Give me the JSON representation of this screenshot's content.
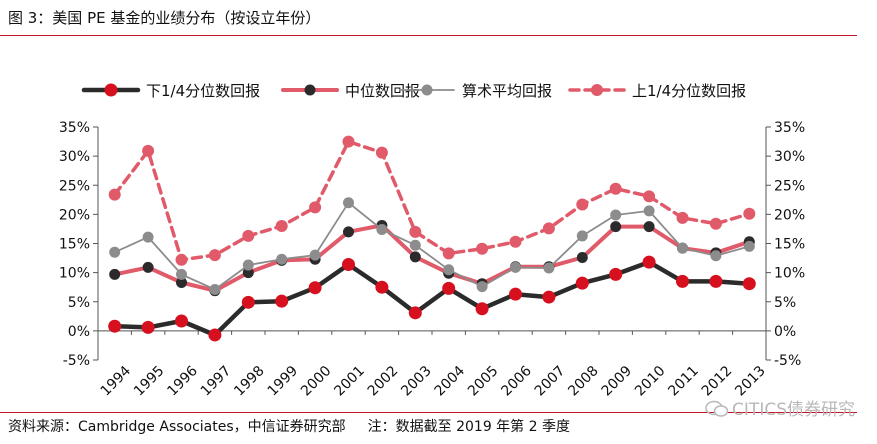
{
  "figure_title": "图 3：美国 PE 基金的业绩分布（按设立年份）",
  "source_text": "资料来源：Cambridge Associates，中信证券研究部",
  "note_text": "注：数据截至 2019 年第 2 季度",
  "watermark": "CITICS债券研究",
  "colors": {
    "accent": "#c0152a",
    "dark": "#2b2b2b",
    "pink": "#e05a6a",
    "gray": "#8c8c8c"
  },
  "chart_data": {
    "type": "line",
    "x": [
      "1994",
      "1995",
      "1996",
      "1997",
      "1998",
      "1999",
      "2000",
      "2001",
      "2002",
      "2003",
      "2004",
      "2005",
      "2006",
      "2007",
      "2008",
      "2009",
      "2010",
      "2011",
      "2012",
      "2013"
    ],
    "y_tick_labels": [
      "35%",
      "30%",
      "25%",
      "20%",
      "15%",
      "10%",
      "5%",
      "0%",
      "-5%"
    ],
    "ylim": [
      -5,
      35
    ],
    "y_unit": "%",
    "y2_axis": true,
    "grid": false,
    "legend_position": "top",
    "series": [
      {
        "name": "下1/4分位数回报",
        "style": "solid-thick",
        "color": "#2b2b2b",
        "marker_color": "#d6101f",
        "values": [
          0.8,
          0.6,
          1.7,
          -0.7,
          4.9,
          5.1,
          7.4,
          11.4,
          7.5,
          3.1,
          7.3,
          3.8,
          6.3,
          5.8,
          8.2,
          9.7,
          11.8,
          8.5,
          8.5,
          8.1
        ]
      },
      {
        "name": "中位数回报",
        "style": "solid",
        "color": "#e05a6a",
        "marker_color": "#2b2b2b",
        "values": [
          9.7,
          10.9,
          8.3,
          6.9,
          10.0,
          12.1,
          12.3,
          17.0,
          18.1,
          12.7,
          9.9,
          8.1,
          11.0,
          11.0,
          12.6,
          17.9,
          17.9,
          14.2,
          13.4,
          15.3
        ]
      },
      {
        "name": "算术平均回报",
        "style": "solid-thin",
        "color": "#8c8c8c",
        "marker_color": "#8c8c8c",
        "values": [
          13.5,
          16.1,
          9.7,
          7.1,
          11.3,
          12.3,
          13.0,
          22.0,
          17.4,
          14.7,
          10.5,
          7.6,
          10.9,
          10.8,
          16.3,
          19.9,
          20.6,
          14.2,
          12.9,
          14.5
        ]
      },
      {
        "name": "上1/4分位数回报",
        "style": "dashed",
        "color": "#e05a6a",
        "marker_color": "#e05a6a",
        "values": [
          23.4,
          30.9,
          12.2,
          13.0,
          16.3,
          18.0,
          21.2,
          32.5,
          30.6,
          17.0,
          13.3,
          14.1,
          15.3,
          17.6,
          21.7,
          24.4,
          23.1,
          19.4,
          18.4,
          20.1
        ]
      }
    ]
  }
}
